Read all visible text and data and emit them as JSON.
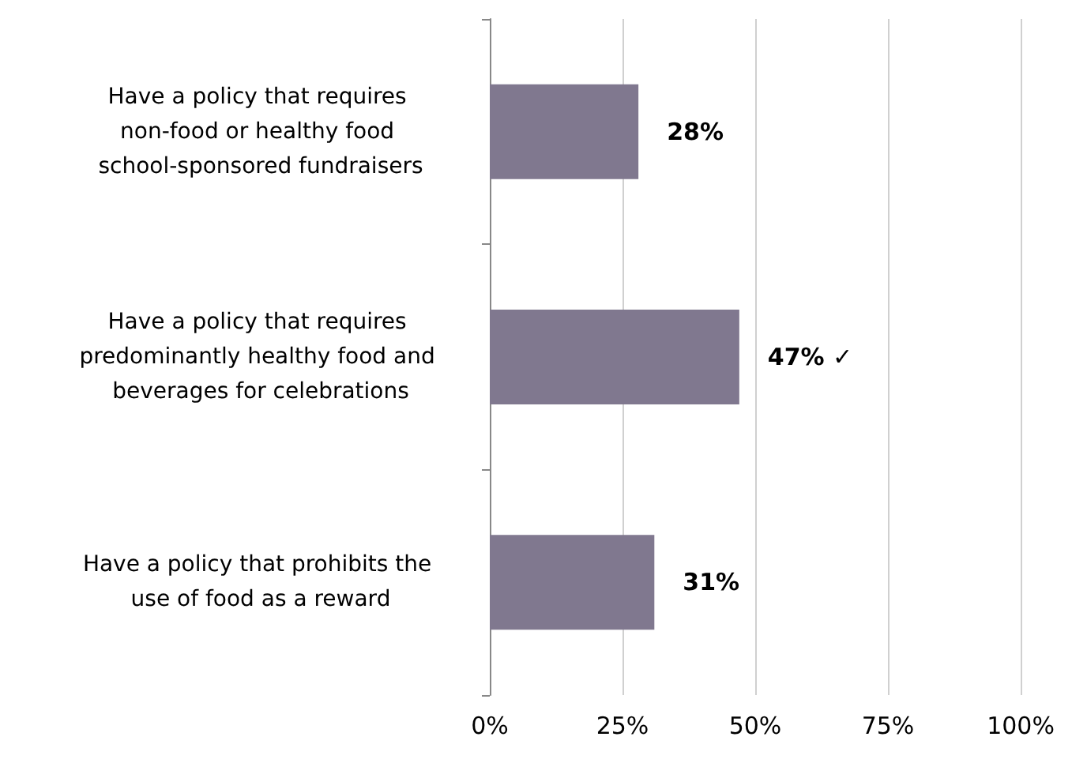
{
  "chart_data": {
    "type": "bar",
    "orientation": "horizontal",
    "categories": [
      "Have a policy that requires non-food or healthy food school-sponsored fundraisers",
      "Have a policy that requires predominantly healthy food and beverages for celebrations",
      "Have a policy that prohibits the use of food as a reward"
    ],
    "values": [
      28,
      47,
      31
    ],
    "color": "#80788f",
    "value_labels": [
      "28%",
      "47% ✓",
      "31%"
    ],
    "xlim": [
      0,
      100
    ],
    "xticks": [
      {
        "value": 0,
        "label": "0%"
      },
      {
        "value": 25,
        "label": "25%"
      },
      {
        "value": 50,
        "label": "50%"
      },
      {
        "value": 75,
        "label": "75%"
      },
      {
        "value": 100,
        "label": "100%"
      }
    ],
    "grid": "x"
  }
}
